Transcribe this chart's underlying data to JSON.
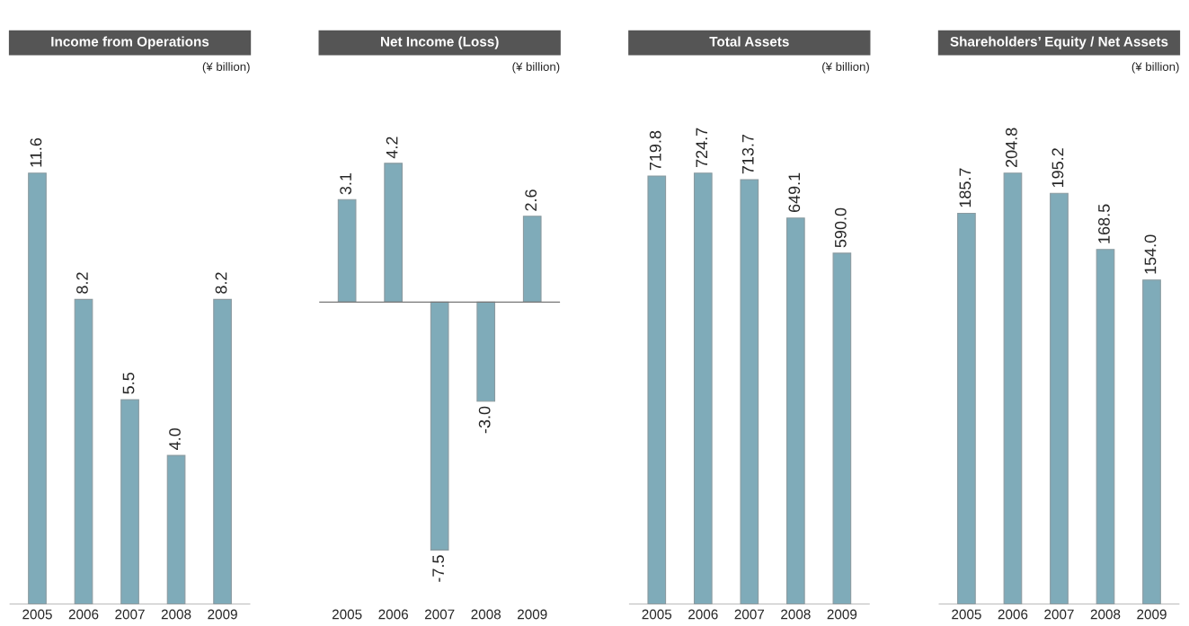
{
  "chart_data": [
    {
      "type": "bar",
      "title": "Income from Operations",
      "subtitle": "(¥ billion)",
      "categories": [
        "2005",
        "2006",
        "2007",
        "2008",
        "2009"
      ],
      "values": [
        11.6,
        8.2,
        5.5,
        4.0,
        8.2
      ],
      "value_labels": [
        "11.6",
        "8.2",
        "5.5",
        "4.0",
        "8.2"
      ],
      "color": "#7fabb9",
      "grid": false,
      "legend": false
    },
    {
      "type": "bar",
      "title": "Net Income (Loss)",
      "subtitle": "(¥ billion)",
      "categories": [
        "2005",
        "2006",
        "2007",
        "2008",
        "2009"
      ],
      "values": [
        3.1,
        4.2,
        -7.5,
        -3.0,
        2.6
      ],
      "value_labels": [
        "3.1",
        "4.2",
        "-7.5",
        "-3.0",
        "2.6"
      ],
      "color": "#7fabb9",
      "grid": false,
      "legend": false
    },
    {
      "type": "bar",
      "title": "Total Assets",
      "subtitle": "(¥ billion)",
      "categories": [
        "2005",
        "2006",
        "2007",
        "2008",
        "2009"
      ],
      "values": [
        719.8,
        724.7,
        713.7,
        649.1,
        590.0
      ],
      "value_labels": [
        "719.8",
        "724.7",
        "713.7",
        "649.1",
        "590.0"
      ],
      "color": "#7fabb9",
      "grid": false,
      "legend": false
    },
    {
      "type": "bar",
      "title": "Shareholders’ Equity / Net Assets",
      "subtitle": "(¥ billion)",
      "categories": [
        "2005",
        "2006",
        "2007",
        "2008",
        "2009"
      ],
      "values": [
        185.7,
        204.8,
        195.2,
        168.5,
        154.0
      ],
      "value_labels": [
        "185.7",
        "204.8",
        "195.2",
        "168.5",
        "154.0"
      ],
      "color": "#7fabb9",
      "grid": false,
      "legend": false
    }
  ]
}
